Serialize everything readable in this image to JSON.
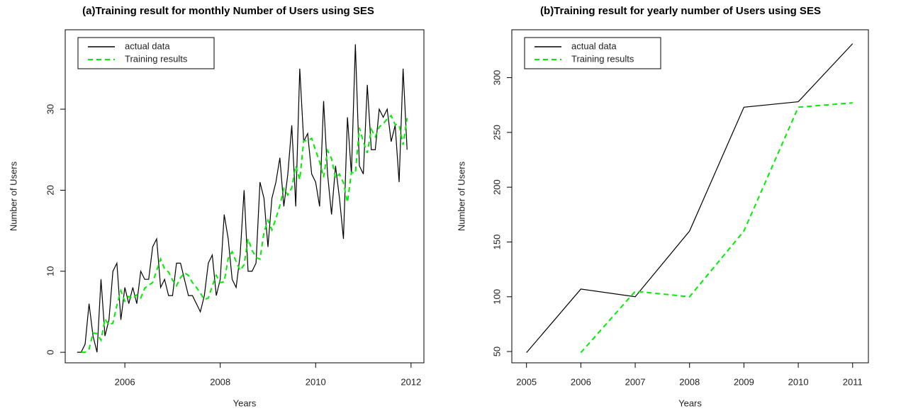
{
  "chart_data": [
    {
      "type": "line",
      "title": "(a)Training result for monthly Number of Users using SES",
      "x_label": "Years",
      "y_label": "Number of Users",
      "x": [
        2005,
        2005.083,
        2005.167,
        2005.25,
        2005.333,
        2005.417,
        2005.5,
        2005.583,
        2005.667,
        2005.75,
        2005.833,
        2005.917,
        2006,
        2006.083,
        2006.167,
        2006.25,
        2006.333,
        2006.417,
        2006.5,
        2006.583,
        2006.667,
        2006.75,
        2006.833,
        2006.917,
        2007,
        2007.083,
        2007.167,
        2007.25,
        2007.333,
        2007.417,
        2007.5,
        2007.583,
        2007.667,
        2007.75,
        2007.833,
        2007.917,
        2008,
        2008.083,
        2008.167,
        2008.25,
        2008.333,
        2008.417,
        2008.5,
        2008.583,
        2008.667,
        2008.75,
        2008.833,
        2008.917,
        2009,
        2009.083,
        2009.167,
        2009.25,
        2009.333,
        2009.417,
        2009.5,
        2009.583,
        2009.667,
        2009.75,
        2009.833,
        2009.917,
        2010,
        2010.083,
        2010.167,
        2010.25,
        2010.333,
        2010.417,
        2010.5,
        2010.583,
        2010.667,
        2010.75,
        2010.833,
        2010.917,
        2011,
        2011.083,
        2011.167,
        2011.25,
        2011.333,
        2011.417,
        2011.5,
        2011.583,
        2011.667,
        2011.75,
        2011.833,
        2011.917
      ],
      "series": [
        {
          "name": "actual data",
          "color": "#000000",
          "linestyle": "solid",
          "values": [
            0,
            0,
            1,
            6,
            2,
            0,
            9,
            2,
            4,
            10,
            11,
            4,
            8,
            6,
            8,
            6,
            10,
            9,
            9,
            13,
            14,
            8,
            9,
            7,
            7,
            11,
            11,
            9,
            7,
            7,
            6,
            5,
            7,
            11,
            12,
            7,
            9,
            17,
            14,
            9,
            8,
            12,
            20,
            10,
            10,
            11,
            21,
            19,
            13,
            19,
            21,
            24,
            18,
            22,
            28,
            18,
            35,
            26,
            27,
            22,
            21,
            18,
            31,
            22,
            17,
            23,
            19,
            14,
            29,
            22,
            38,
            23,
            22,
            33,
            25,
            25,
            30,
            29,
            30,
            26,
            28,
            21,
            35,
            25
          ]
        },
        {
          "name": "Training results",
          "color": "#00ee00",
          "linestyle": "dashed",
          "values": [
            null,
            0,
            0,
            0.4,
            2.4,
            2.3,
            1.5,
            4.1,
            3.4,
            3.6,
            5.8,
            7.6,
            6.3,
            6.9,
            6.6,
            7.1,
            6.7,
            7.9,
            8.3,
            8.6,
            10.1,
            11.5,
            10.3,
            9.9,
            8.9,
            8.2,
            9.2,
            9.8,
            9.5,
            8.6,
            8.0,
            7.3,
            6.5,
            6.7,
            8.2,
            9.5,
            8.6,
            8.7,
            11.6,
            12.4,
            11.2,
            10.1,
            10.8,
            14.0,
            12.6,
            11.7,
            11.5,
            14.8,
            16.3,
            15.1,
            16.5,
            18.1,
            20.2,
            19.4,
            20.3,
            23.0,
            21.3,
            26.1,
            26.1,
            26.4,
            24.9,
            23.5,
            21.6,
            24.9,
            23.9,
            21.5,
            22.0,
            20.9,
            18.5,
            22.2,
            22.1,
            27.7,
            26.0,
            24.6,
            27.5,
            26.6,
            27.8,
            28.2,
            28.8,
            29.2,
            28.1,
            28.1,
            25.6,
            28.9
          ]
        }
      ],
      "xlim": [
        2004.75,
        2012.27
      ],
      "xticks": [
        2006,
        2008,
        2010,
        2012
      ],
      "ylim": [
        -1.3,
        39.8
      ],
      "yticks": [
        0,
        10,
        20,
        30
      ],
      "legend": "top-left"
    },
    {
      "type": "line",
      "title": "(b)Training result for yearly number of Users using SES",
      "x_label": "Years",
      "y_label": "Number of Users",
      "x": [
        2005,
        2006,
        2007,
        2008,
        2009,
        2010,
        2011
      ],
      "series": [
        {
          "name": "actual data",
          "color": "#000000",
          "linestyle": "solid",
          "values": [
            49,
            107,
            100,
            160,
            273,
            278,
            331
          ]
        },
        {
          "name": "Training results",
          "color": "#00ee00",
          "linestyle": "dashed",
          "values": [
            null,
            49,
            105,
            100,
            160,
            273,
            277
          ]
        }
      ],
      "xlim": [
        2004.73,
        2011.29
      ],
      "xticks": [
        2005,
        2006,
        2007,
        2008,
        2009,
        2010,
        2011
      ],
      "ylim": [
        39.7,
        343.7
      ],
      "yticks": [
        50,
        100,
        150,
        200,
        250,
        300
      ],
      "legend": "top-left"
    }
  ]
}
